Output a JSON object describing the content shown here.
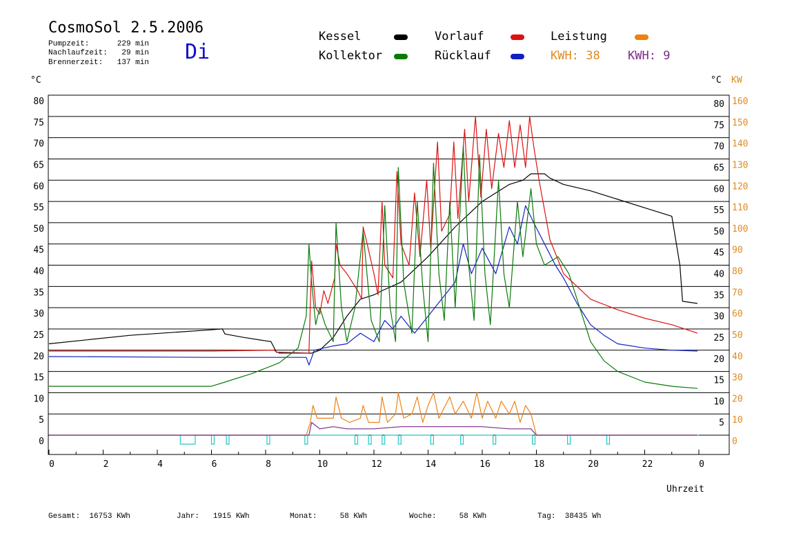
{
  "header": {
    "title": "CosmoSol 2.5.2006",
    "day": "Di",
    "stats": [
      {
        "label": "Pumpzeit:",
        "value": "229 min"
      },
      {
        "label": "Nachlaufzeit:",
        "value": "29 min"
      },
      {
        "label": "Brennerzeit:",
        "value": "137 min"
      }
    ]
  },
  "legend": {
    "kessel": {
      "label": "Kessel",
      "color": "#000000"
    },
    "kollektor": {
      "label": "Kollektor",
      "color": "#0a7a0a"
    },
    "vorlauf": {
      "label": "Vorlauf",
      "color": "#dd1111"
    },
    "ruecklauf": {
      "label": "Rücklauf",
      "color": "#1020c0"
    },
    "leistung": {
      "label": "Leistung",
      "color": "#f08010"
    },
    "kwh1": {
      "label": "KWH:",
      "value": "38",
      "color": "#e08a20"
    },
    "kwh2": {
      "label": "KWH:",
      "value": "9",
      "color": "#7a2a8a"
    }
  },
  "axes": {
    "left_unit": "°C",
    "right_unit_c": "°C",
    "right_unit_kw": "KW",
    "xlabel": "Uhrzeit"
  },
  "footer": [
    {
      "label": "Gesamt:",
      "value": "16753 KWh"
    },
    {
      "label": "Jahr:",
      "value": "1915 KWh"
    },
    {
      "label": "Monat:",
      "value": "58 KWh"
    },
    {
      "label": "Woche:",
      "value": "58 KWh"
    },
    {
      "label": "Tag:",
      "value": "38435 Wh"
    }
  ],
  "chart_data": {
    "type": "line",
    "x_range": [
      0,
      24
    ],
    "x_ticks": [
      "0",
      "2",
      "4",
      "6",
      "8",
      "10",
      "12",
      "14",
      "16",
      "18",
      "20",
      "22",
      "0"
    ],
    "y_range": [
      0,
      80
    ],
    "y_ticks_left": [
      "0",
      "5",
      "10",
      "15",
      "20",
      "25",
      "30",
      "35",
      "40",
      "45",
      "50",
      "55",
      "60",
      "65",
      "70",
      "75",
      "80"
    ],
    "y_ticks_right_c": [
      "5",
      "10",
      "15",
      "20",
      "25",
      "30",
      "35",
      "40",
      "45",
      "50",
      "55",
      "60",
      "65",
      "70",
      "75",
      "80"
    ],
    "y_ticks_right_kw": [
      "0",
      "10",
      "20",
      "30",
      "40",
      "50",
      "60",
      "70",
      "80",
      "90",
      "100",
      "110",
      "120",
      "130",
      "140",
      "150",
      "160"
    ],
    "grid": true,
    "series": [
      {
        "key": "kessel",
        "points": [
          [
            0,
            21.5
          ],
          [
            3,
            23.5
          ],
          [
            6,
            24.8
          ],
          [
            6.4,
            25
          ],
          [
            6.5,
            23.8
          ],
          [
            7.2,
            23
          ],
          [
            8.2,
            22
          ],
          [
            8.4,
            19.5
          ],
          [
            9.7,
            19.3
          ],
          [
            10.0,
            20
          ],
          [
            10.5,
            23
          ],
          [
            11,
            28
          ],
          [
            11.5,
            32
          ],
          [
            12,
            33
          ],
          [
            12.3,
            34
          ],
          [
            13,
            36
          ],
          [
            14,
            42
          ],
          [
            15,
            49
          ],
          [
            15.5,
            52
          ],
          [
            16,
            55
          ],
          [
            16.5,
            57
          ],
          [
            17,
            59
          ],
          [
            17.5,
            60
          ],
          [
            17.8,
            61.5
          ],
          [
            18.3,
            61.5
          ],
          [
            18.5,
            60.5
          ],
          [
            19,
            59
          ],
          [
            20,
            57.5
          ],
          [
            21,
            55.5
          ],
          [
            22,
            53.5
          ],
          [
            23,
            51.5
          ],
          [
            23.3,
            40
          ],
          [
            23.4,
            31.5
          ],
          [
            23.95,
            31
          ]
        ]
      },
      {
        "key": "vorlauf",
        "points": [
          [
            0,
            19.8
          ],
          [
            6,
            19.8
          ],
          [
            8.3,
            20
          ],
          [
            8.5,
            19.3
          ],
          [
            9.6,
            19.3
          ],
          [
            9.7,
            41
          ],
          [
            9.85,
            30
          ],
          [
            10.0,
            28.5
          ],
          [
            10.15,
            34
          ],
          [
            10.3,
            31
          ],
          [
            10.55,
            37
          ],
          [
            10.6,
            45
          ],
          [
            10.75,
            40
          ],
          [
            11,
            38
          ],
          [
            11.4,
            34
          ],
          [
            11.55,
            32
          ],
          [
            11.6,
            49
          ],
          [
            11.75,
            45
          ],
          [
            12,
            38
          ],
          [
            12.15,
            33
          ],
          [
            12.3,
            55
          ],
          [
            12.4,
            40
          ],
          [
            12.7,
            37
          ],
          [
            12.85,
            62
          ],
          [
            13.0,
            45
          ],
          [
            13.3,
            40
          ],
          [
            13.5,
            57
          ],
          [
            13.7,
            42
          ],
          [
            13.95,
            60
          ],
          [
            14.1,
            44
          ],
          [
            14.35,
            69
          ],
          [
            14.5,
            48
          ],
          [
            14.8,
            52
          ],
          [
            14.95,
            69
          ],
          [
            15.1,
            51
          ],
          [
            15.35,
            72
          ],
          [
            15.5,
            55
          ],
          [
            15.75,
            75
          ],
          [
            15.95,
            56
          ],
          [
            16.15,
            72
          ],
          [
            16.35,
            58
          ],
          [
            16.6,
            71
          ],
          [
            16.8,
            63
          ],
          [
            17.0,
            74
          ],
          [
            17.2,
            63
          ],
          [
            17.4,
            73
          ],
          [
            17.6,
            63
          ],
          [
            17.75,
            75
          ],
          [
            17.9,
            68
          ],
          [
            18.1,
            60
          ],
          [
            18.5,
            46
          ],
          [
            19,
            38
          ],
          [
            19.5,
            35
          ],
          [
            20,
            32
          ],
          [
            21,
            29.5
          ],
          [
            22,
            27.5
          ],
          [
            23,
            26
          ],
          [
            23.95,
            24
          ]
        ]
      },
      {
        "key": "ruecklauf",
        "points": [
          [
            0,
            18.5
          ],
          [
            6,
            18.3
          ],
          [
            9.5,
            18.3
          ],
          [
            9.6,
            16.5
          ],
          [
            9.8,
            20
          ],
          [
            10.5,
            21
          ],
          [
            11,
            21.5
          ],
          [
            11.5,
            24
          ],
          [
            12,
            22
          ],
          [
            12.4,
            27
          ],
          [
            12.7,
            25
          ],
          [
            13,
            28
          ],
          [
            13.5,
            24
          ],
          [
            14,
            28
          ],
          [
            14.5,
            32
          ],
          [
            15,
            36
          ],
          [
            15.3,
            45
          ],
          [
            15.6,
            38
          ],
          [
            16,
            44
          ],
          [
            16.5,
            38
          ],
          [
            17,
            49
          ],
          [
            17.3,
            45
          ],
          [
            17.6,
            54
          ],
          [
            17.9,
            50
          ],
          [
            18.3,
            45
          ],
          [
            18.7,
            40
          ],
          [
            19,
            37
          ],
          [
            19.5,
            31
          ],
          [
            20,
            26
          ],
          [
            20.5,
            23.5
          ],
          [
            21,
            21.5
          ],
          [
            22,
            20.5
          ],
          [
            23,
            20
          ],
          [
            23.95,
            19.8
          ]
        ]
      },
      {
        "key": "kollektor",
        "points": [
          [
            0,
            11.5
          ],
          [
            3,
            11.5
          ],
          [
            6,
            11.5
          ],
          [
            6.5,
            12.5
          ],
          [
            7.5,
            14.5
          ],
          [
            8.5,
            17
          ],
          [
            9.2,
            20.5
          ],
          [
            9.5,
            28
          ],
          [
            9.6,
            45
          ],
          [
            9.7,
            36
          ],
          [
            9.85,
            26
          ],
          [
            10.0,
            30
          ],
          [
            10.2,
            26
          ],
          [
            10.5,
            22
          ],
          [
            10.6,
            50
          ],
          [
            10.8,
            30
          ],
          [
            11.0,
            22
          ],
          [
            11.3,
            30
          ],
          [
            11.6,
            48
          ],
          [
            11.9,
            27
          ],
          [
            12.2,
            22
          ],
          [
            12.4,
            54
          ],
          [
            12.6,
            30
          ],
          [
            12.8,
            22
          ],
          [
            12.9,
            63
          ],
          [
            13.1,
            36
          ],
          [
            13.4,
            24
          ],
          [
            13.6,
            55
          ],
          [
            13.8,
            35
          ],
          [
            14.0,
            22
          ],
          [
            14.2,
            64
          ],
          [
            14.4,
            38
          ],
          [
            14.6,
            27
          ],
          [
            14.8,
            55
          ],
          [
            15.0,
            30
          ],
          [
            15.3,
            68
          ],
          [
            15.5,
            40
          ],
          [
            15.7,
            27
          ],
          [
            15.9,
            66
          ],
          [
            16.1,
            38
          ],
          [
            16.3,
            26
          ],
          [
            16.6,
            60
          ],
          [
            16.8,
            38
          ],
          [
            17.0,
            30
          ],
          [
            17.3,
            55
          ],
          [
            17.5,
            42
          ],
          [
            17.8,
            58
          ],
          [
            18.0,
            45
          ],
          [
            18.3,
            40
          ],
          [
            18.8,
            42
          ],
          [
            19.2,
            38
          ],
          [
            19.6,
            30
          ],
          [
            20,
            22
          ],
          [
            20.5,
            17.5
          ],
          [
            21,
            15
          ],
          [
            22,
            12.5
          ],
          [
            23,
            11.5
          ],
          [
            23.95,
            11
          ]
        ]
      },
      {
        "key": "leistung",
        "points": [
          [
            0,
            0
          ],
          [
            9.5,
            0
          ],
          [
            9.65,
            3
          ],
          [
            9.75,
            7
          ],
          [
            9.9,
            4
          ],
          [
            10.2,
            4
          ],
          [
            10.5,
            4
          ],
          [
            10.6,
            9
          ],
          [
            10.8,
            4
          ],
          [
            11.1,
            3
          ],
          [
            11.5,
            4
          ],
          [
            11.6,
            7
          ],
          [
            11.8,
            3
          ],
          [
            12.2,
            3
          ],
          [
            12.3,
            9
          ],
          [
            12.5,
            3
          ],
          [
            12.8,
            5
          ],
          [
            12.9,
            10
          ],
          [
            13.1,
            4
          ],
          [
            13.4,
            5
          ],
          [
            13.6,
            9
          ],
          [
            13.8,
            3
          ],
          [
            14.0,
            7
          ],
          [
            14.2,
            10
          ],
          [
            14.4,
            4
          ],
          [
            14.8,
            9
          ],
          [
            15.0,
            5
          ],
          [
            15.3,
            8
          ],
          [
            15.6,
            4
          ],
          [
            15.8,
            10
          ],
          [
            16.0,
            4
          ],
          [
            16.2,
            8
          ],
          [
            16.5,
            4
          ],
          [
            16.7,
            8
          ],
          [
            17.0,
            5
          ],
          [
            17.2,
            8
          ],
          [
            17.4,
            3
          ],
          [
            17.6,
            7
          ],
          [
            17.8,
            5
          ],
          [
            18.0,
            0
          ],
          [
            23.95,
            0
          ]
        ]
      },
      {
        "key": "kwh2",
        "points": [
          [
            0,
            0
          ],
          [
            9.6,
            0
          ],
          [
            9.7,
            3
          ],
          [
            10.0,
            1.5
          ],
          [
            10.5,
            2
          ],
          [
            11,
            1.5
          ],
          [
            12,
            1.5
          ],
          [
            13,
            2
          ],
          [
            14,
            2
          ],
          [
            15,
            2
          ],
          [
            16,
            2
          ],
          [
            17,
            1.5
          ],
          [
            17.8,
            1.5
          ],
          [
            18.0,
            0
          ],
          [
            23.95,
            0
          ]
        ]
      }
    ],
    "pump_pulses": [
      [
        4.85,
        5.4
      ],
      [
        6.0,
        6.1
      ],
      [
        6.55,
        6.65
      ],
      [
        8.05,
        8.15
      ],
      [
        9.45,
        9.55
      ],
      [
        11.3,
        11.4
      ],
      [
        11.8,
        11.9
      ],
      [
        12.3,
        12.4
      ],
      [
        12.9,
        13.0
      ],
      [
        14.1,
        14.2
      ],
      [
        15.2,
        15.3
      ],
      [
        16.4,
        16.5
      ],
      [
        17.85,
        17.95
      ],
      [
        19.15,
        19.25
      ],
      [
        20.6,
        20.7
      ]
    ]
  }
}
